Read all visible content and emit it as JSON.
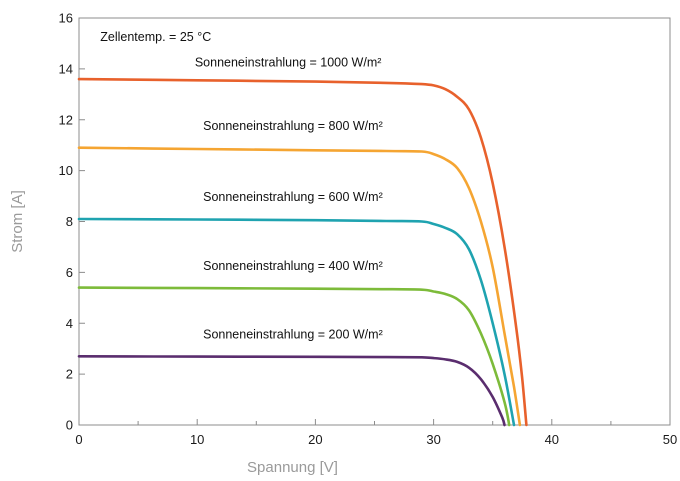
{
  "chart_data": {
    "type": "line",
    "xlabel": "Spannung [V]",
    "ylabel": "Strom [A]",
    "xlim": [
      0,
      50
    ],
    "ylim": [
      0,
      16
    ],
    "xticks": [
      0,
      10,
      20,
      30,
      40,
      50
    ],
    "yticks": [
      0,
      2,
      4,
      6,
      8,
      10,
      12,
      14,
      16
    ],
    "grid": false,
    "annotations": [
      {
        "text": "Zellentemp. = 25 °C",
        "x": 1.8,
        "y": 15.1
      },
      {
        "text": "Sonneneinstrahlung = 1000 W/m²",
        "x": 9.8,
        "y": 14.1
      },
      {
        "text": "Sonneneinstrahlung = 800 W/m²",
        "x": 10.5,
        "y": 11.6
      },
      {
        "text": "Sonneneinstrahlung = 600 W/m²",
        "x": 10.5,
        "y": 8.8
      },
      {
        "text": "Sonneneinstrahlung = 400 W/m²",
        "x": 10.5,
        "y": 6.1
      },
      {
        "text": "Sonneneinstrahlung = 200 W/m²",
        "x": 10.5,
        "y": 3.4
      }
    ],
    "series": [
      {
        "color": "#e8612c",
        "points": [
          [
            0,
            13.6
          ],
          [
            10,
            13.55
          ],
          [
            20,
            13.5
          ],
          [
            26,
            13.45
          ],
          [
            29,
            13.4
          ],
          [
            30,
            13.35
          ],
          [
            31,
            13.2
          ],
          [
            32,
            12.9
          ],
          [
            33,
            12.4
          ],
          [
            34,
            11.3
          ],
          [
            35,
            9.5
          ],
          [
            36,
            7.0
          ],
          [
            37,
            3.8
          ],
          [
            37.5,
            1.8
          ],
          [
            37.85,
            0
          ]
        ]
      },
      {
        "color": "#f5a532",
        "points": [
          [
            0,
            10.9
          ],
          [
            10,
            10.85
          ],
          [
            20,
            10.8
          ],
          [
            26,
            10.77
          ],
          [
            29,
            10.75
          ],
          [
            30,
            10.65
          ],
          [
            31,
            10.45
          ],
          [
            32,
            10.1
          ],
          [
            33,
            9.3
          ],
          [
            34,
            8.0
          ],
          [
            35,
            6.2
          ],
          [
            36,
            3.6
          ],
          [
            36.8,
            1.5
          ],
          [
            37.3,
            0
          ]
        ]
      },
      {
        "color": "#1fa3b0",
        "points": [
          [
            0,
            8.1
          ],
          [
            10,
            8.08
          ],
          [
            20,
            8.05
          ],
          [
            26,
            8.02
          ],
          [
            29,
            8.0
          ],
          [
            30,
            7.9
          ],
          [
            31,
            7.75
          ],
          [
            32,
            7.5
          ],
          [
            33,
            6.9
          ],
          [
            34,
            5.7
          ],
          [
            35,
            4.0
          ],
          [
            36,
            2.0
          ],
          [
            36.8,
            0
          ]
        ]
      },
      {
        "color": "#7dbb3a",
        "points": [
          [
            0,
            5.4
          ],
          [
            10,
            5.38
          ],
          [
            20,
            5.36
          ],
          [
            26,
            5.34
          ],
          [
            29,
            5.32
          ],
          [
            30,
            5.25
          ],
          [
            31,
            5.15
          ],
          [
            32,
            4.95
          ],
          [
            33,
            4.5
          ],
          [
            34,
            3.6
          ],
          [
            35,
            2.4
          ],
          [
            36,
            0.9
          ],
          [
            36.4,
            0
          ]
        ]
      },
      {
        "color": "#5a2d6e",
        "points": [
          [
            0,
            2.7
          ],
          [
            10,
            2.69
          ],
          [
            20,
            2.68
          ],
          [
            26,
            2.67
          ],
          [
            29,
            2.66
          ],
          [
            30,
            2.63
          ],
          [
            31,
            2.58
          ],
          [
            32,
            2.48
          ],
          [
            33,
            2.25
          ],
          [
            34,
            1.8
          ],
          [
            35,
            1.1
          ],
          [
            35.8,
            0.3
          ],
          [
            36.0,
            0
          ]
        ]
      }
    ]
  }
}
